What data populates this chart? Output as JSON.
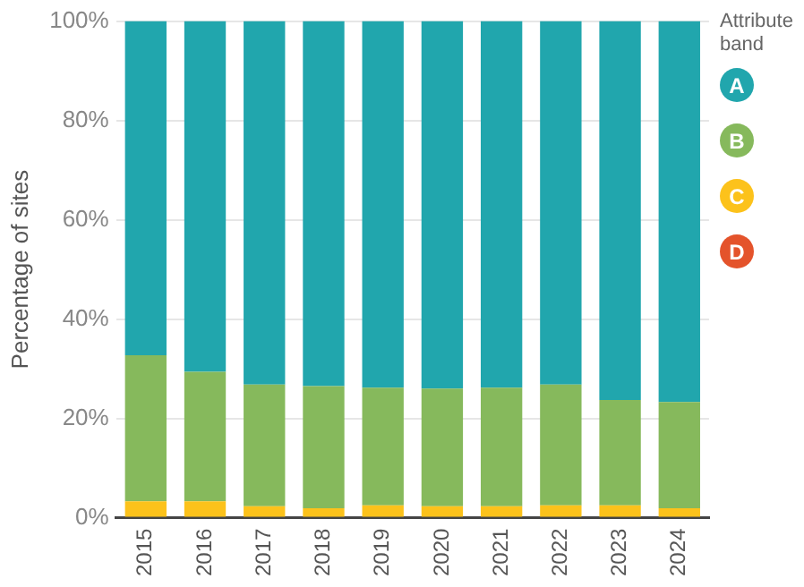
{
  "chart_data": {
    "type": "bar",
    "stacked": true,
    "ylabel": "Percentage of sites",
    "legend_title": "Attribute band",
    "legend": "right",
    "grid": "y",
    "categories": [
      "2015",
      "2016",
      "2017",
      "2018",
      "2019",
      "2020",
      "2021",
      "2022",
      "2023",
      "2024"
    ],
    "ylim": [
      0,
      100
    ],
    "yticks": [
      {
        "value": 0,
        "label": "0%"
      },
      {
        "value": 20,
        "label": "20%"
      },
      {
        "value": 40,
        "label": "40%"
      },
      {
        "value": 60,
        "label": "60%"
      },
      {
        "value": 80,
        "label": "80%"
      },
      {
        "value": 100,
        "label": "100%"
      }
    ],
    "series": [
      {
        "name": "D",
        "color": "#e4532b",
        "values": [
          0,
          0,
          0,
          0,
          0.2,
          0.2,
          0,
          0.2,
          0.2,
          0
        ]
      },
      {
        "name": "C",
        "color": "#fcc21b",
        "values": [
          3.3,
          3.3,
          2.3,
          1.9,
          2.3,
          2.1,
          2.3,
          2.3,
          2.3,
          1.9
        ]
      },
      {
        "name": "B",
        "color": "#86b95c",
        "values": [
          29.4,
          26.1,
          24.5,
          24.6,
          23.7,
          23.7,
          23.9,
          24.3,
          21.2,
          21.4
        ]
      },
      {
        "name": "A",
        "color": "#21a6ad",
        "values": [
          67.3,
          70.6,
          73.2,
          73.5,
          73.8,
          74.0,
          73.8,
          73.2,
          76.3,
          76.7
        ]
      }
    ]
  }
}
